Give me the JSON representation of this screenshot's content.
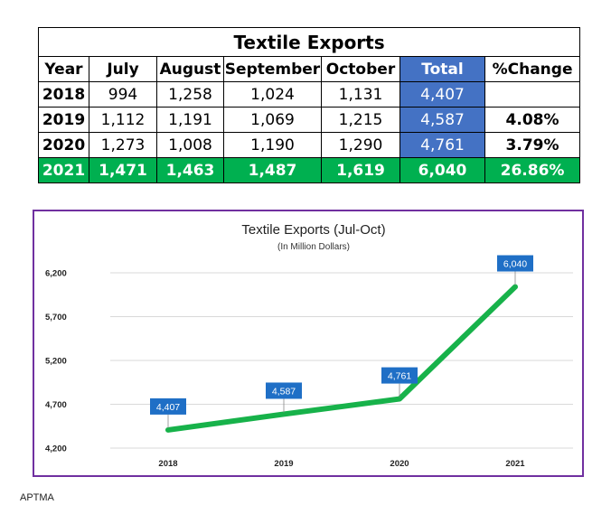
{
  "table": {
    "title": "Textile Exports",
    "headers": [
      "Year",
      "July",
      "August",
      "September",
      "October",
      "Total",
      "%Change"
    ],
    "rows": [
      [
        "2018",
        "994",
        "1,258",
        "1,024",
        "1,131",
        "4,407",
        ""
      ],
      [
        "2019",
        "1,112",
        "1,191",
        "1,069",
        "1,215",
        "4,587",
        "4.08%"
      ],
      [
        "2020",
        "1,273",
        "1,008",
        "1,190",
        "1,290",
        "4,761",
        "3.79%"
      ],
      [
        "2021",
        "1,471",
        "1,463",
        "1,487",
        "1,619",
        "6,040",
        "26.86%"
      ]
    ],
    "total_color": "#4472c4",
    "highlight_color": "#00b050"
  },
  "chart_data": {
    "type": "line",
    "title": "Textile Exports (Jul-Oct)",
    "subtitle": "(In Million Dollars)",
    "categories": [
      "2018",
      "2019",
      "2020",
      "2021"
    ],
    "values": [
      4407,
      4587,
      4761,
      6040
    ],
    "data_labels": [
      "4,407",
      "4,587",
      "4,761",
      "6,040"
    ],
    "yticks": [
      4200,
      4700,
      5200,
      5700,
      6200
    ],
    "ytick_labels": [
      "4,200",
      "4,700",
      "5,200",
      "5,700",
      "6,200"
    ],
    "ylim": [
      4200,
      6200
    ],
    "xlabel": "",
    "ylabel": "",
    "grid": true,
    "line_color": "#17b24a",
    "label_color": "#1f6fc6",
    "border_color": "#7030a0"
  },
  "source": "APTMA"
}
